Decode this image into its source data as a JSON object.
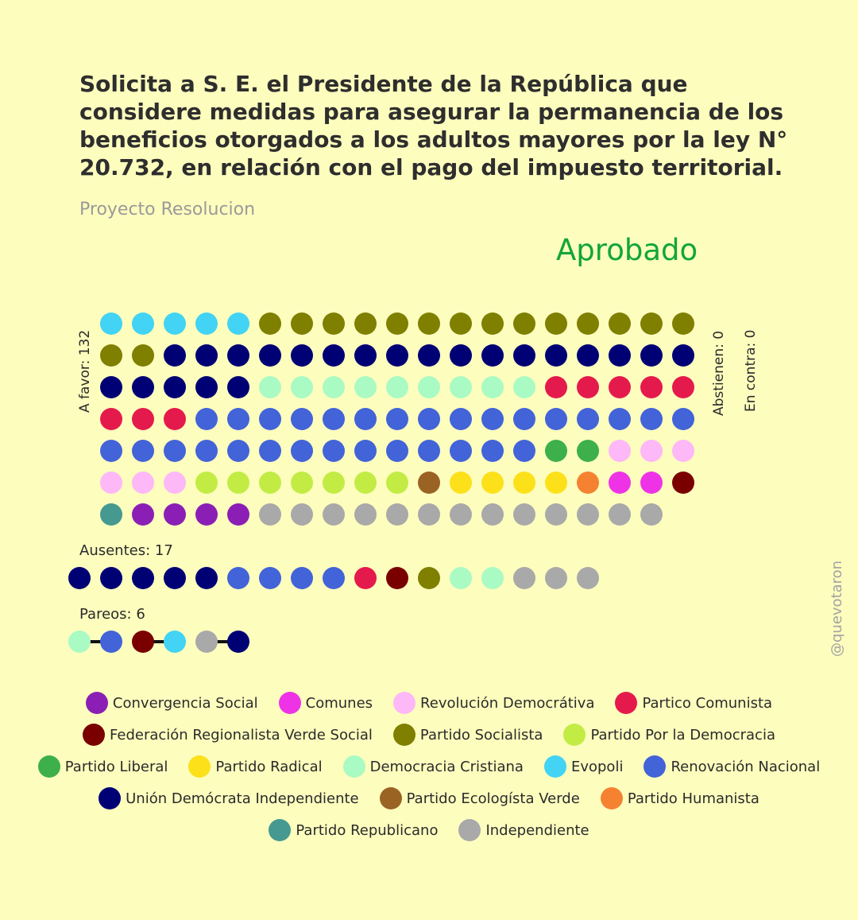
{
  "title": "Solicita a S. E. el Presidente de la República que considere medidas para asegurar la permanencia de los beneficios otorgados a los adultos mayores por la ley N° 20.732, en relación con el pago del impuesto territorial.",
  "subtitle": "Proyecto Resolucion",
  "result": "Aprobado",
  "labels": {
    "favor": "A favor: 132",
    "abstienen": "Abstienen: 0",
    "contra": "En contra: 0",
    "ausentes": "Ausentes: 17",
    "pareos": "Pareos: 6"
  },
  "watermark": "@quevotaron",
  "parties": {
    "convergencia_social": {
      "label": "Convergencia Social",
      "color": "#8B1FB5"
    },
    "comunes": {
      "label": "Comunes",
      "color": "#EE33E6"
    },
    "revolucion_democratica": {
      "label": "Revolución Democrátiva",
      "color": "#FDB8F8"
    },
    "partido_comunista": {
      "label": "Partico Comunista",
      "color": "#E51A4C"
    },
    "federacion_regionalista": {
      "label": "Federación Regionalista Verde Social",
      "color": "#7A0000"
    },
    "partido_socialista": {
      "label": "Partido Socialista",
      "color": "#7F7F00"
    },
    "ppd": {
      "label": "Partido Por la Democracia",
      "color": "#C2EC44"
    },
    "partido_liberal": {
      "label": "Partido Liberal",
      "color": "#3DB04B"
    },
    "partido_radical": {
      "label": "Partido Radical",
      "color": "#FCE01A"
    },
    "democracia_cristiana": {
      "label": "Democracia Cristiana",
      "color": "#AAFAC4"
    },
    "evopoli": {
      "label": "Evopoli",
      "color": "#42D3F5"
    },
    "renovacion_nacional": {
      "label": "Renovación Nacional",
      "color": "#4363D8"
    },
    "udi": {
      "label": "Unión Demócrata Independiente",
      "color": "#000075"
    },
    "ecologista_verde": {
      "label": "Partido Ecologísta Verde",
      "color": "#9A6324"
    },
    "humanista": {
      "label": "Partido Humanista",
      "color": "#F58231"
    },
    "republicano": {
      "label": "Partido Republicano",
      "color": "#469990"
    },
    "independiente": {
      "label": "Independiente",
      "color": "#A9A9A9"
    }
  },
  "legend_rows": [
    [
      "convergencia_social",
      "comunes",
      "revolucion_democratica",
      "partido_comunista"
    ],
    [
      "federacion_regionalista",
      "partido_socialista",
      "ppd"
    ],
    [
      "partido_liberal",
      "partido_radical",
      "democracia_cristiana",
      "evopoli",
      "renovacion_nacional"
    ],
    [
      "udi",
      "ecologista_verde",
      "humanista"
    ],
    [
      "republicano",
      "independiente"
    ]
  ],
  "chart_data": {
    "type": "dot-matrix",
    "a_favor": [
      {
        "party": "evopoli",
        "count": 5
      },
      {
        "party": "partido_socialista",
        "count": 16
      },
      {
        "party": "udi",
        "count": 22
      },
      {
        "party": "democracia_cristiana",
        "count": 9
      },
      {
        "party": "partido_comunista",
        "count": 8
      },
      {
        "party": "renovacion_nacional",
        "count": 30
      },
      {
        "party": "partido_liberal",
        "count": 2
      },
      {
        "party": "revolucion_democratica",
        "count": 6
      },
      {
        "party": "ppd",
        "count": 7
      },
      {
        "party": "ecologista_verde",
        "count": 1
      },
      {
        "party": "partido_radical",
        "count": 4
      },
      {
        "party": "humanista",
        "count": 1
      },
      {
        "party": "comunes",
        "count": 2
      },
      {
        "party": "federacion_regionalista",
        "count": 1
      },
      {
        "party": "republicano",
        "count": 1
      },
      {
        "party": "convergencia_social",
        "count": 4
      },
      {
        "party": "independiente",
        "count": 13
      }
    ],
    "abstienen": [],
    "en_contra": [],
    "ausentes": [
      {
        "party": "udi",
        "count": 5
      },
      {
        "party": "renovacion_nacional",
        "count": 4
      },
      {
        "party": "partido_comunista",
        "count": 1
      },
      {
        "party": "federacion_regionalista",
        "count": 1
      },
      {
        "party": "partido_socialista",
        "count": 1
      },
      {
        "party": "democracia_cristiana",
        "count": 2
      },
      {
        "party": "independiente",
        "count": 3
      }
    ],
    "pareos": [
      [
        "democracia_cristiana",
        "renovacion_nacional"
      ],
      [
        "federacion_regionalista",
        "evopoli"
      ],
      [
        "independiente",
        "udi"
      ]
    ]
  }
}
